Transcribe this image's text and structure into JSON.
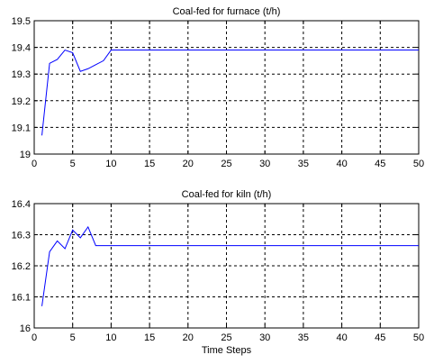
{
  "chart_data": [
    {
      "type": "line",
      "title": "Coal-fed for furnace (t/h)",
      "xlabel": "",
      "ylabel": "",
      "xlim": [
        0,
        50
      ],
      "ylim": [
        19,
        19.5
      ],
      "xticks": [
        0,
        5,
        10,
        15,
        20,
        25,
        30,
        35,
        40,
        45,
        50
      ],
      "yticks": [
        19,
        19.1,
        19.2,
        19.3,
        19.4,
        19.5
      ],
      "xtick_labels": [
        "0",
        "5",
        "10",
        "15",
        "20",
        "25",
        "30",
        "35",
        "40",
        "45",
        "50"
      ],
      "ytick_labels": [
        "19",
        "19.1",
        "19.2",
        "19.3",
        "19.4",
        "19.5"
      ],
      "grid": true,
      "series": [
        {
          "color": "#0000ff",
          "x": [
            1,
            2,
            3,
            4,
            5,
            6,
            7,
            8,
            9,
            10,
            50
          ],
          "y": [
            19.07,
            19.34,
            19.355,
            19.39,
            19.38,
            19.31,
            19.32,
            19.335,
            19.35,
            19.39,
            19.39
          ]
        }
      ]
    },
    {
      "type": "line",
      "title": "Coal-fed for kiln (t/h)",
      "xlabel": "Time Steps",
      "ylabel": "",
      "xlim": [
        0,
        50
      ],
      "ylim": [
        16,
        16.4
      ],
      "xticks": [
        0,
        5,
        10,
        15,
        20,
        25,
        30,
        35,
        40,
        45,
        50
      ],
      "yticks": [
        16,
        16.1,
        16.2,
        16.3,
        16.4
      ],
      "xtick_labels": [
        "0",
        "5",
        "10",
        "15",
        "20",
        "25",
        "30",
        "35",
        "40",
        "45",
        "50"
      ],
      "ytick_labels": [
        "16",
        "16.1",
        "16.2",
        "16.3",
        "16.4"
      ],
      "grid": true,
      "series": [
        {
          "color": "#0000ff",
          "x": [
            1,
            2,
            3,
            4,
            5,
            6,
            7,
            8,
            50
          ],
          "y": [
            16.07,
            16.245,
            16.28,
            16.255,
            16.315,
            16.29,
            16.325,
            16.265,
            16.265
          ]
        }
      ]
    }
  ]
}
